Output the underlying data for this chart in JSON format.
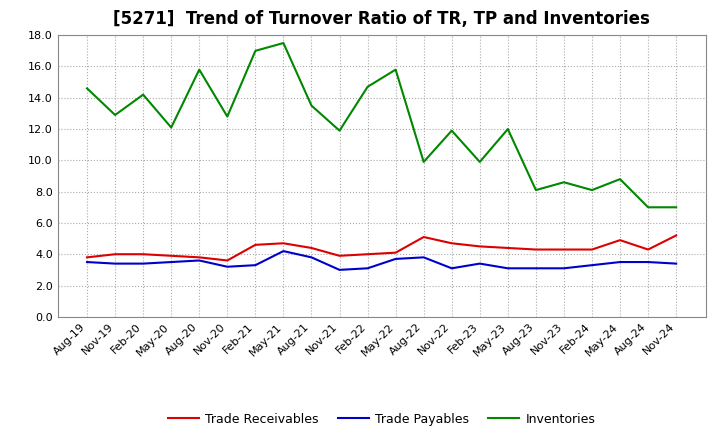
{
  "title": "[5271]  Trend of Turnover Ratio of TR, TP and Inventories",
  "x_labels": [
    "Aug-19",
    "Nov-19",
    "Feb-20",
    "May-20",
    "Aug-20",
    "Nov-20",
    "Feb-21",
    "May-21",
    "Aug-21",
    "Nov-21",
    "Feb-22",
    "May-22",
    "Aug-22",
    "Nov-22",
    "Feb-23",
    "May-23",
    "Aug-23",
    "Nov-23",
    "Feb-24",
    "May-24",
    "Aug-24",
    "Nov-24"
  ],
  "trade_receivables": [
    3.8,
    4.0,
    4.0,
    3.9,
    3.8,
    3.6,
    4.6,
    4.7,
    4.4,
    3.9,
    4.0,
    4.1,
    5.1,
    4.7,
    4.5,
    4.4,
    4.3,
    4.3,
    4.3,
    4.9,
    4.3,
    5.2
  ],
  "trade_payables": [
    3.5,
    3.4,
    3.4,
    3.5,
    3.6,
    3.2,
    3.3,
    4.2,
    3.8,
    3.0,
    3.1,
    3.7,
    3.8,
    3.1,
    3.4,
    3.1,
    3.1,
    3.1,
    3.3,
    3.5,
    3.5,
    3.4
  ],
  "inventories": [
    14.6,
    12.9,
    14.2,
    12.1,
    15.8,
    12.8,
    17.0,
    17.5,
    13.5,
    11.9,
    14.7,
    15.8,
    9.9,
    11.9,
    9.9,
    12.0,
    8.1,
    8.6,
    8.1,
    8.8,
    7.0,
    7.0
  ],
  "tr_color": "#dd0000",
  "tp_color": "#0000cc",
  "inv_color": "#008800",
  "ylim": [
    0.0,
    18.0
  ],
  "yticks": [
    0.0,
    2.0,
    4.0,
    6.0,
    8.0,
    10.0,
    12.0,
    14.0,
    16.0,
    18.0
  ],
  "legend_labels": [
    "Trade Receivables",
    "Trade Payables",
    "Inventories"
  ],
  "bg_color": "#ffffff",
  "grid_color": "#aaaaaa",
  "title_fontsize": 12,
  "tick_fontsize": 8,
  "legend_fontsize": 9
}
